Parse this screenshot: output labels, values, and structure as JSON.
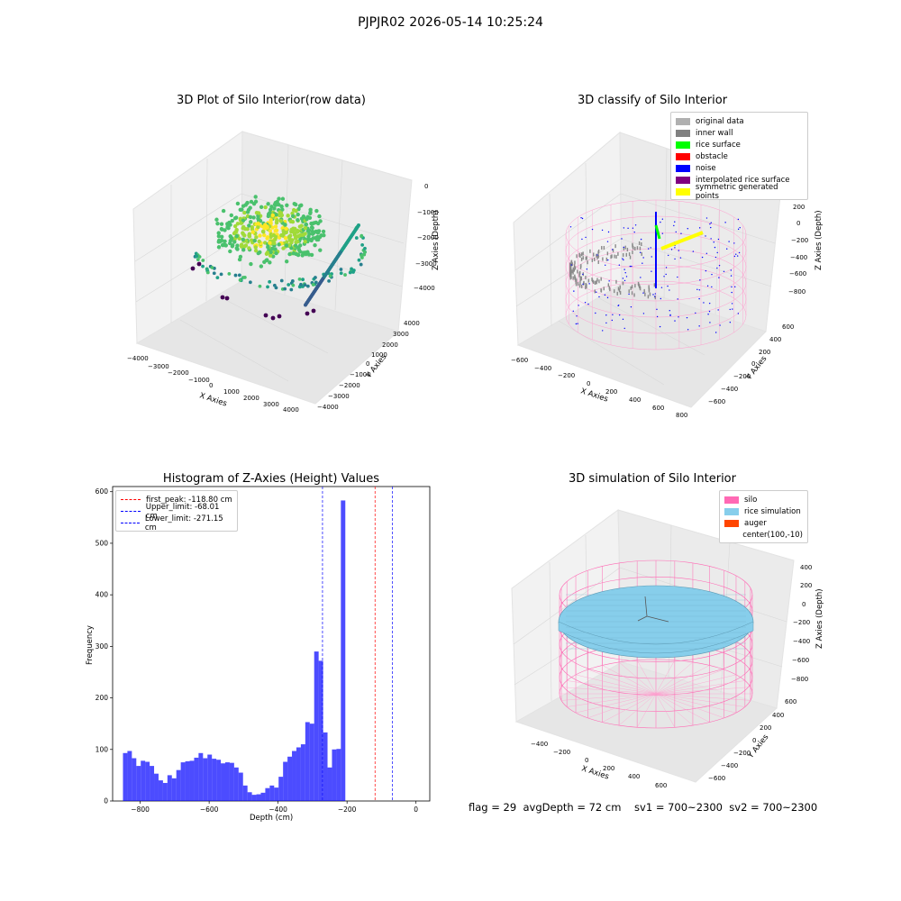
{
  "suptitle": "PJPJR02 2026-05-14 10:25:24",
  "footer": "flag = 29  avgDepth = 72 cm    sv1 = 700~2300  sv2 = 700~2300",
  "chart_data": [
    {
      "type": "scatter3d",
      "title": "3D Plot of Silo Interior(row data)",
      "xlabel": "X Axies",
      "ylabel": "Y Axies",
      "zlabel": "Z Axies (Depth)",
      "x_ticks": [
        "−4000",
        "−3000",
        "−2000",
        "−1000",
        "0",
        "1000",
        "2000",
        "3000",
        "4000"
      ],
      "y_ticks": [
        "4000",
        "3000",
        "2000",
        "1000",
        "0",
        "−1000",
        "−2000",
        "−3000",
        "−4000"
      ],
      "z_ticks": [
        "0",
        "−1000",
        "−2000",
        "−3000",
        "−4000"
      ],
      "colormap": "viridis"
    },
    {
      "type": "scatter3d",
      "title": "3D classify of Silo Interior",
      "xlabel": "X Axies",
      "ylabel": "Y Axies",
      "zlabel": "Z Axies (Depth)",
      "x_ticks": [
        "−600",
        "−400",
        "−200",
        "0",
        "200",
        "400",
        "600",
        "800"
      ],
      "y_ticks": [
        "600",
        "400",
        "200",
        "0",
        "−200",
        "−400",
        "−600"
      ],
      "z_ticks": [
        "200",
        "0",
        "−200",
        "−400",
        "−600",
        "−800"
      ],
      "z_partial_tick": "0",
      "legend": [
        {
          "label": "original data",
          "color": "#b0b0b0"
        },
        {
          "label": "inner wall",
          "color": "#808080"
        },
        {
          "label": "rice surface",
          "color": "#00ff00"
        },
        {
          "label": "obstacle",
          "color": "#ff0000"
        },
        {
          "label": "noise",
          "color": "#0000ff"
        },
        {
          "label": "interpolated rice surface",
          "color": "#800080"
        },
        {
          "label": "symmetric generated points",
          "color": "#ffff00"
        }
      ]
    },
    {
      "type": "bar",
      "title": "Histogram of Z-Axies (Height) Values",
      "xlabel": "Depth (cm)",
      "ylabel": "Frequency",
      "xlim": [
        -880,
        40
      ],
      "ylim": [
        0,
        610
      ],
      "x_ticks": [
        -800,
        -600,
        -400,
        -200,
        0
      ],
      "x_tick_labels": [
        "−800",
        "−600",
        "−400",
        "−200",
        "0"
      ],
      "y_ticks": [
        0,
        100,
        200,
        300,
        400,
        500,
        600
      ],
      "bar_color": "#0000ff",
      "bin_start": -850,
      "bin_width": 12.9,
      "values": [
        93,
        97,
        83,
        68,
        78,
        76,
        68,
        53,
        40,
        35,
        50,
        44,
        60,
        75,
        77,
        78,
        84,
        93,
        83,
        90,
        82,
        80,
        73,
        75,
        74,
        65,
        55,
        30,
        17,
        12,
        13,
        16,
        25,
        30,
        26,
        47,
        76,
        86,
        97,
        104,
        110,
        153,
        150,
        290,
        272,
        133,
        65,
        100,
        101,
        583
      ],
      "vlines": [
        {
          "x": -118.8,
          "color": "#ff0000",
          "label": "first_peak: -118.80 cm"
        },
        {
          "x": -68.01,
          "color": "#0000ff",
          "label": "Upper_limit: -68.01 cm"
        },
        {
          "x": -271.15,
          "color": "#0000ff",
          "label": "Lower_limit: -271.15 cm"
        }
      ],
      "legend_position": "upper left"
    },
    {
      "type": "surface3d",
      "title": "3D simulation of Silo Interior",
      "xlabel": "X Axies",
      "ylabel": "Y Axies",
      "zlabel": "Z Axies (Depth)",
      "x_ticks": [
        "−400",
        "−200",
        "0",
        "200",
        "400",
        "600"
      ],
      "y_ticks": [
        "600",
        "400",
        "200",
        "0",
        "−200",
        "−400",
        "−600"
      ],
      "z_ticks": [
        "400",
        "200",
        "0",
        "−200",
        "−400",
        "−600",
        "−800"
      ],
      "legend": [
        {
          "label": "silo",
          "color": "#ff69b4"
        },
        {
          "label": "rice simulation",
          "color": "#87ceeb"
        },
        {
          "label": "auger",
          "color": "#ff4500"
        },
        {
          "label": "center(100,-10)",
          "color": ""
        }
      ]
    }
  ]
}
